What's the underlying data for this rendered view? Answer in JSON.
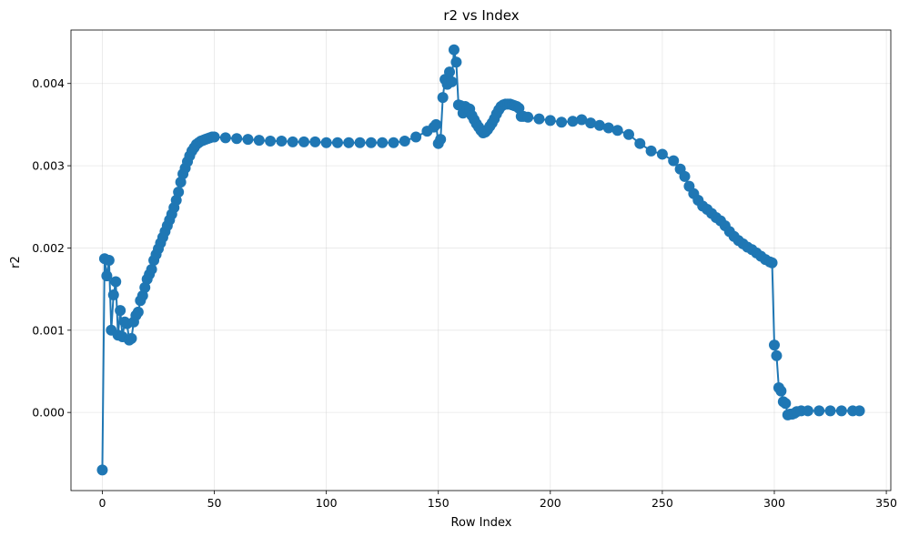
{
  "chart_data": {
    "type": "line",
    "title": "r2 vs Index",
    "xlabel": "Row Index",
    "ylabel": "r2",
    "xlim": [
      -14,
      352
    ],
    "ylim": [
      -0.00095,
      0.00465
    ],
    "xticks": [
      0,
      50,
      100,
      150,
      200,
      250,
      300,
      350
    ],
    "yticks": [
      0.0,
      0.001,
      0.002,
      0.003,
      0.004
    ],
    "xtick_labels": [
      "0",
      "50",
      "100",
      "150",
      "200",
      "250",
      "300",
      "350"
    ],
    "ytick_labels": [
      "0.000",
      "0.001",
      "0.002",
      "0.003",
      "0.004"
    ],
    "grid": true,
    "color": "#1f77b4",
    "marker": "circle",
    "series": [
      {
        "x": [
          0,
          1,
          2,
          3,
          4,
          5,
          6,
          7,
          8,
          9,
          10,
          11,
          12,
          13,
          14,
          15,
          16,
          17,
          18,
          19,
          20,
          21,
          22,
          23,
          24,
          25,
          26,
          27,
          28,
          29,
          30,
          31,
          32,
          33,
          34,
          35,
          36,
          37,
          38,
          39,
          40,
          41,
          42,
          43,
          44,
          45,
          46,
          47,
          48,
          49,
          50,
          55,
          60,
          65,
          70,
          75,
          80,
          85,
          90,
          95,
          100,
          105,
          110,
          115,
          120,
          125,
          130,
          135,
          140,
          145,
          148,
          149,
          150,
          151,
          152,
          153,
          154,
          155,
          156,
          157,
          158,
          159,
          160,
          161,
          162,
          163,
          164,
          165,
          166,
          167,
          168,
          169,
          170,
          171,
          172,
          173,
          174,
          175,
          176,
          177,
          178,
          179,
          180,
          181,
          182,
          183,
          184,
          185,
          186,
          187,
          188,
          190,
          195,
          200,
          205,
          210,
          214,
          218,
          222,
          226,
          230,
          235,
          240,
          245,
          250,
          255,
          258,
          260,
          262,
          264,
          266,
          268,
          270,
          272,
          274,
          276,
          278,
          280,
          282,
          284,
          286,
          288,
          290,
          292,
          294,
          296,
          298,
          299,
          300,
          301,
          302,
          303,
          304,
          305,
          306,
          307,
          308,
          309,
          310,
          312,
          315,
          320,
          325,
          330,
          335,
          338
        ],
        "y": [
          -0.0007,
          0.00187,
          0.00166,
          0.00185,
          0.001,
          0.00143,
          0.00159,
          0.00094,
          0.00124,
          0.00092,
          0.0011,
          0.00108,
          0.00088,
          0.0009,
          0.0011,
          0.00118,
          0.00122,
          0.00136,
          0.00142,
          0.00152,
          0.00162,
          0.00168,
          0.00174,
          0.00185,
          0.00192,
          0.00199,
          0.00206,
          0.00213,
          0.0022,
          0.00227,
          0.00234,
          0.00241,
          0.00249,
          0.00258,
          0.00268,
          0.0028,
          0.0029,
          0.00297,
          0.00305,
          0.00312,
          0.00318,
          0.00322,
          0.00326,
          0.00328,
          0.0033,
          0.00331,
          0.00332,
          0.00333,
          0.00334,
          0.00335,
          0.00335,
          0.00334,
          0.00333,
          0.00332,
          0.00331,
          0.0033,
          0.0033,
          0.00329,
          0.00329,
          0.00329,
          0.00328,
          0.00328,
          0.00328,
          0.00328,
          0.00328,
          0.00328,
          0.00328,
          0.0033,
          0.00335,
          0.00342,
          0.00347,
          0.0035,
          0.00327,
          0.00332,
          0.00383,
          0.00405,
          0.00399,
          0.00414,
          0.00402,
          0.00441,
          0.00426,
          0.00374,
          0.00373,
          0.00364,
          0.00372,
          0.0037,
          0.00369,
          0.00361,
          0.00356,
          0.00351,
          0.00347,
          0.00343,
          0.0034,
          0.00341,
          0.00344,
          0.00348,
          0.00352,
          0.00357,
          0.00363,
          0.00368,
          0.00372,
          0.00374,
          0.00375,
          0.00375,
          0.00375,
          0.00374,
          0.00373,
          0.00372,
          0.0037,
          0.0036,
          0.0036,
          0.00359,
          0.00357,
          0.00355,
          0.00353,
          0.00354,
          0.00356,
          0.00352,
          0.00349,
          0.00346,
          0.00343,
          0.00338,
          0.00327,
          0.00318,
          0.00314,
          0.00306,
          0.00296,
          0.00287,
          0.00275,
          0.00266,
          0.00258,
          0.00251,
          0.00247,
          0.00242,
          0.00237,
          0.00233,
          0.00227,
          0.0022,
          0.00214,
          0.00209,
          0.00205,
          0.00201,
          0.00198,
          0.00194,
          0.0019,
          0.00186,
          0.00183,
          0.00182,
          0.00082,
          0.00069,
          0.0003,
          0.00026,
          0.00013,
          0.00011,
          -3e-05,
          -2e-05,
          -2e-05,
          -1e-05,
          1e-05,
          2e-05,
          2e-05,
          2e-05,
          2e-05,
          2e-05,
          2e-05,
          2e-05
        ]
      }
    ]
  }
}
